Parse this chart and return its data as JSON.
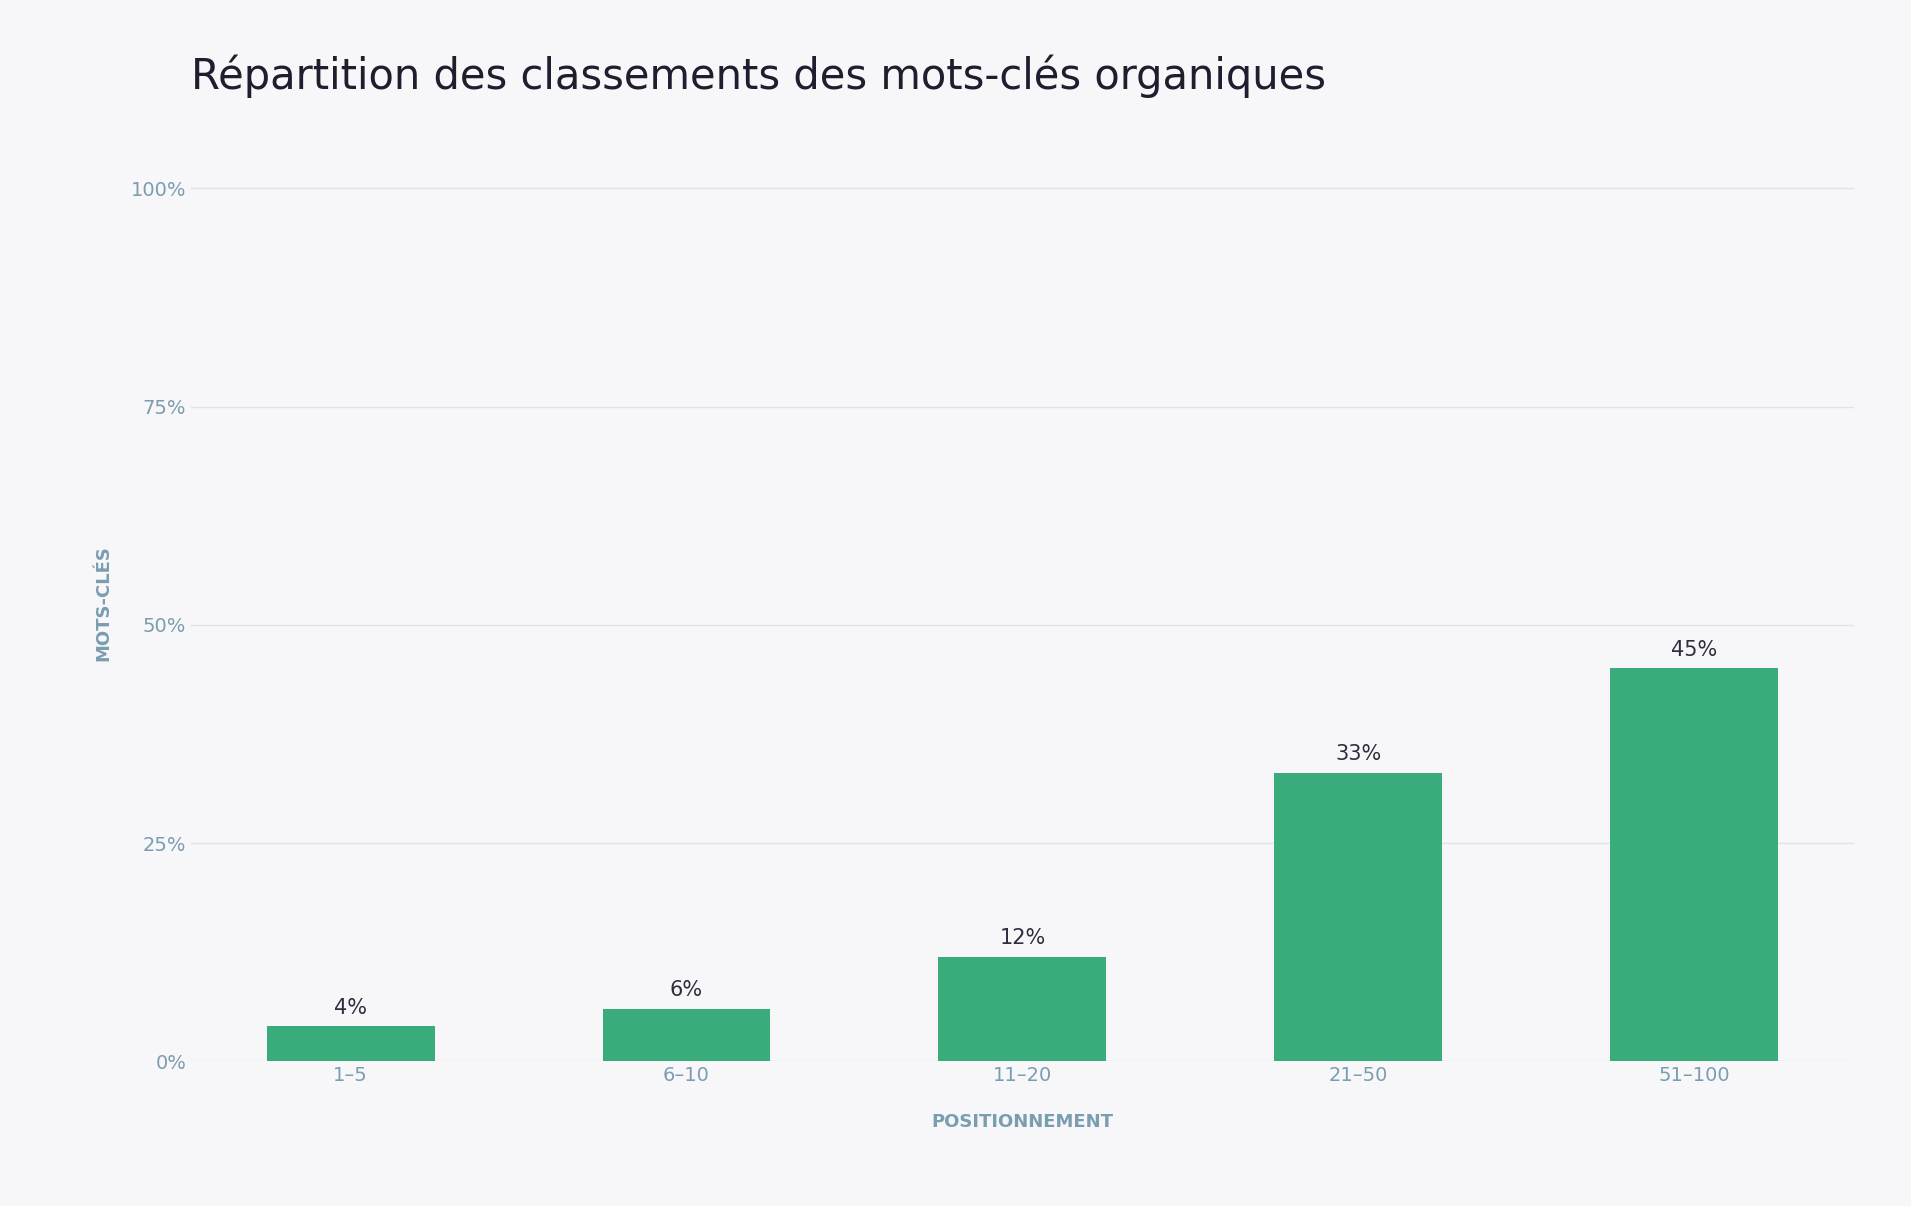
{
  "title": "Répartition des classements des mots-clés organiques",
  "categories": [
    "1–5",
    "6–10",
    "11–20",
    "21–50",
    "51–100"
  ],
  "values": [
    4,
    6,
    12,
    33,
    45
  ],
  "bar_color": "#3aab7b",
  "background_color": "#f7f7f9",
  "plot_bg_color": "#f7f7f9",
  "title_color": "#1e1e2e",
  "ylabel": "MOTS-CLÉS",
  "xlabel": "POSITIONNEMENT",
  "axis_label_color": "#7a9db0",
  "tick_color": "#7a9db0",
  "gridline_color": "#dde3e8",
  "annotation_color": "#2e2e3e",
  "yticks": [
    0,
    25,
    50,
    75,
    100
  ],
  "ylim": [
    0,
    105
  ],
  "title_fontsize": 30,
  "axis_label_fontsize": 13,
  "tick_fontsize": 14,
  "annotation_fontsize": 15,
  "bar_width": 0.5
}
